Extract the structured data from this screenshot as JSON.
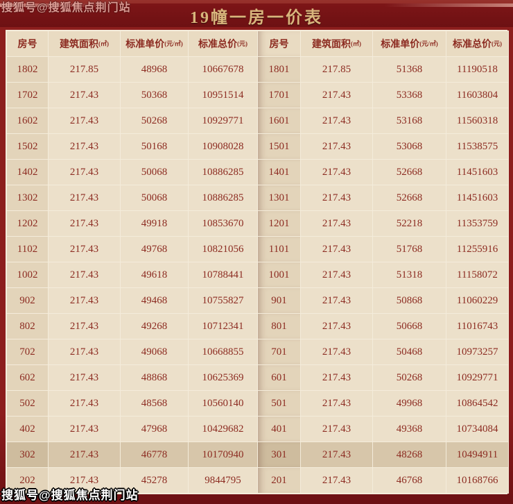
{
  "title": "19幢一房一价表",
  "watermark": "搜狐号@搜狐焦点荆门站",
  "colors": {
    "frame_red": "#8c1d1d",
    "title_bar": "#751316",
    "title_gold": "#d9b57c",
    "cell_text": "#8c2b21",
    "cell_bg": "#ece0ca",
    "room_col_bg": "#e3d4ba",
    "header_bg": "#e9dbc2",
    "highlight_bg": "#d7c6aa",
    "grid_line": "#f4ecdb"
  },
  "table": {
    "headers": [
      {
        "label": "房号",
        "unit": ""
      },
      {
        "label": "建筑面积",
        "unit": "(㎡)"
      },
      {
        "label": "标准单价",
        "unit": "(元/㎡)"
      },
      {
        "label": "标准总价",
        "unit": "(元)"
      },
      {
        "label": "房号",
        "unit": ""
      },
      {
        "label": "建筑面积",
        "unit": "(㎡)"
      },
      {
        "label": "标准单价",
        "unit": "(元/㎡)"
      },
      {
        "label": "标准总价",
        "unit": "(元)"
      }
    ],
    "highlight_row_index": 15,
    "rows": [
      [
        "1802",
        "217.85",
        "48968",
        "10667678",
        "1801",
        "217.85",
        "51368",
        "11190518"
      ],
      [
        "1702",
        "217.43",
        "50368",
        "10951514",
        "1701",
        "217.43",
        "53368",
        "11603804"
      ],
      [
        "1602",
        "217.43",
        "50268",
        "10929771",
        "1601",
        "217.43",
        "53168",
        "11560318"
      ],
      [
        "1502",
        "217.43",
        "50168",
        "10908028",
        "1501",
        "217.43",
        "53068",
        "11538575"
      ],
      [
        "1402",
        "217.43",
        "50068",
        "10886285",
        "1401",
        "217.43",
        "52668",
        "11451603"
      ],
      [
        "1302",
        "217.43",
        "50068",
        "10886285",
        "1301",
        "217.43",
        "52668",
        "11451603"
      ],
      [
        "1202",
        "217.43",
        "49918",
        "10853670",
        "1201",
        "217.43",
        "52218",
        "11353759"
      ],
      [
        "1102",
        "217.43",
        "49768",
        "10821056",
        "1101",
        "217.43",
        "51768",
        "11255916"
      ],
      [
        "1002",
        "217.43",
        "49618",
        "10788441",
        "1001",
        "217.43",
        "51318",
        "11158072"
      ],
      [
        "902",
        "217.43",
        "49468",
        "10755827",
        "901",
        "217.43",
        "50868",
        "11060229"
      ],
      [
        "802",
        "217.43",
        "49268",
        "10712341",
        "801",
        "217.43",
        "50668",
        "11016743"
      ],
      [
        "702",
        "217.43",
        "49068",
        "10668855",
        "701",
        "217.43",
        "50468",
        "10973257"
      ],
      [
        "602",
        "217.43",
        "48868",
        "10625369",
        "601",
        "217.43",
        "50268",
        "10929771"
      ],
      [
        "502",
        "217.43",
        "48568",
        "10560140",
        "501",
        "217.43",
        "49968",
        "10864542"
      ],
      [
        "402",
        "217.43",
        "47968",
        "10429682",
        "401",
        "217.43",
        "49368",
        "10734084"
      ],
      [
        "302",
        "217.43",
        "46778",
        "10170940",
        "301",
        "217.43",
        "48268",
        "10494911"
      ],
      [
        "202",
        "217.43",
        "45278",
        "9844795",
        "201",
        "217.43",
        "46768",
        "10168766"
      ]
    ]
  }
}
